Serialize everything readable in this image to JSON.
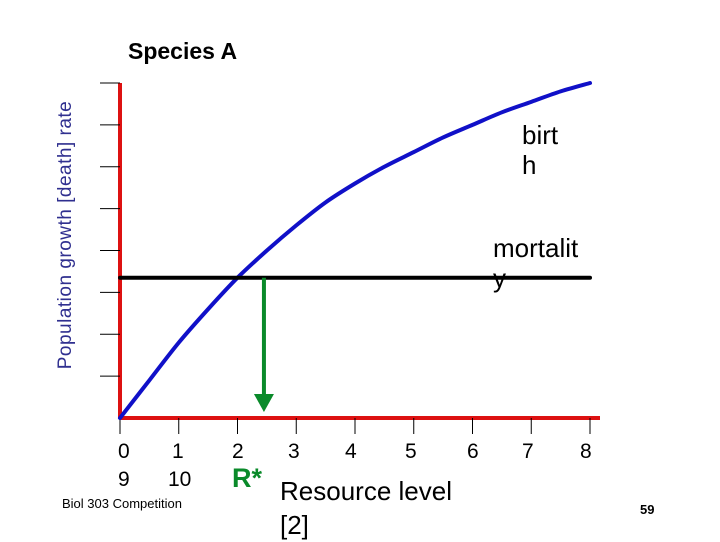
{
  "chart_data": {
    "type": "line",
    "title": "Species A",
    "ylabel": "Population growth [death] rate",
    "xlabel": "Resource level",
    "xlabel_note": "[2]",
    "xlim": [
      0,
      8
    ],
    "ylim": [
      0,
      8
    ],
    "grid": false,
    "x_tick_labels_top": [
      "0",
      "1",
      "2",
      "3",
      "4",
      "5",
      "6",
      "7",
      "8"
    ],
    "x_tick_labels_bottom": [
      "9",
      "10"
    ],
    "series": [
      {
        "name": "birth",
        "label_text": "birt\nh",
        "color": "#1010c8",
        "x": [
          0,
          0.5,
          1,
          1.5,
          2,
          2.5,
          3,
          3.5,
          4,
          4.5,
          5,
          5.5,
          6,
          6.5,
          7,
          7.5,
          8
        ],
        "y": [
          0,
          0.9,
          1.8,
          2.6,
          3.35,
          4.0,
          4.6,
          5.15,
          5.6,
          6.0,
          6.35,
          6.7,
          7.0,
          7.3,
          7.55,
          7.8,
          8.0
        ]
      },
      {
        "name": "mortality",
        "label_text": "mortalit\ny",
        "color": "#000000",
        "x": [
          0,
          8
        ],
        "y": [
          3.35,
          3.35
        ]
      }
    ],
    "annotations": [
      {
        "text": "R*",
        "x": 2.45,
        "y": 3.35,
        "arrow_to_y": 0,
        "color": "#0a8a2a"
      }
    ],
    "axis_color": "#dd1111"
  },
  "footer": "Biol 303 Competition",
  "page_number": "59"
}
